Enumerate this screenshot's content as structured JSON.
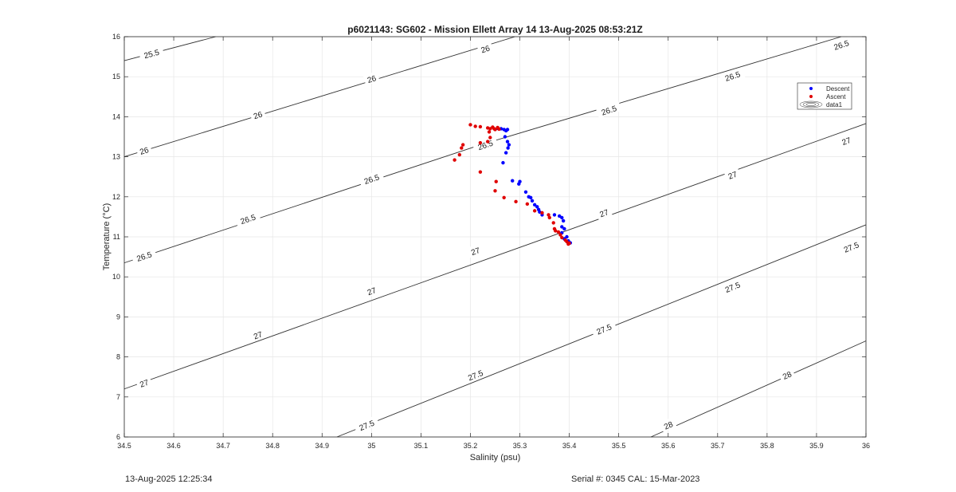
{
  "chart_data": {
    "type": "scatter",
    "title": "p6021143: SG602 - Mission Ellett Array 14 13-Aug-2025 08:53:21Z",
    "xlabel": "Salinity (psu)",
    "ylabel": "Temperature (°C)",
    "xlim": [
      34.5,
      36
    ],
    "ylim": [
      6,
      16
    ],
    "xticks": [
      "34.5",
      "34.6",
      "34.7",
      "34.8",
      "34.9",
      "35",
      "35.1",
      "35.2",
      "35.3",
      "35.4",
      "35.5",
      "35.6",
      "35.7",
      "35.8",
      "35.9",
      "36"
    ],
    "yticks": [
      "6",
      "7",
      "8",
      "9",
      "10",
      "11",
      "12",
      "13",
      "14",
      "15",
      "16"
    ],
    "grid": true,
    "legend_position": "top-right",
    "series": [
      {
        "name": "Descent",
        "color": "#0000ff",
        "points": [
          [
            35.255,
            13.71
          ],
          [
            35.262,
            13.7
          ],
          [
            35.268,
            13.68
          ],
          [
            35.272,
            13.65
          ],
          [
            35.275,
            13.68
          ],
          [
            35.27,
            13.5
          ],
          [
            35.275,
            13.38
          ],
          [
            35.278,
            13.3
          ],
          [
            35.276,
            13.22
          ],
          [
            35.272,
            13.1
          ],
          [
            35.266,
            12.85
          ],
          [
            35.285,
            12.4
          ],
          [
            35.3,
            12.38
          ],
          [
            35.298,
            12.32
          ],
          [
            35.312,
            12.12
          ],
          [
            35.318,
            12.0
          ],
          [
            35.322,
            11.98
          ],
          [
            35.325,
            11.9
          ],
          [
            35.33,
            11.8
          ],
          [
            35.335,
            11.75
          ],
          [
            35.338,
            11.68
          ],
          [
            35.34,
            11.62
          ],
          [
            35.345,
            11.55
          ],
          [
            35.37,
            11.55
          ],
          [
            35.38,
            11.52
          ],
          [
            35.385,
            11.48
          ],
          [
            35.388,
            11.4
          ],
          [
            35.385,
            11.25
          ],
          [
            35.39,
            11.2
          ],
          [
            35.385,
            11.1
          ],
          [
            35.395,
            11.0
          ],
          [
            35.39,
            10.95
          ],
          [
            35.398,
            10.9
          ],
          [
            35.402,
            10.85
          ]
        ]
      },
      {
        "name": "Ascent",
        "color": "#e00000",
        "points": [
          [
            35.2,
            13.8
          ],
          [
            35.21,
            13.76
          ],
          [
            35.22,
            13.75
          ],
          [
            35.235,
            13.72
          ],
          [
            35.24,
            13.7
          ],
          [
            35.245,
            13.74
          ],
          [
            35.25,
            13.68
          ],
          [
            35.255,
            13.73
          ],
          [
            35.258,
            13.69
          ],
          [
            35.248,
            13.7
          ],
          [
            35.238,
            13.62
          ],
          [
            35.24,
            13.48
          ],
          [
            35.235,
            13.38
          ],
          [
            35.22,
            13.35
          ],
          [
            35.185,
            13.3
          ],
          [
            35.182,
            13.22
          ],
          [
            35.178,
            13.05
          ],
          [
            35.168,
            12.92
          ],
          [
            35.22,
            12.62
          ],
          [
            35.252,
            12.38
          ],
          [
            35.25,
            12.15
          ],
          [
            35.268,
            11.98
          ],
          [
            35.292,
            11.88
          ],
          [
            35.315,
            11.82
          ],
          [
            35.33,
            11.65
          ],
          [
            35.345,
            11.6
          ],
          [
            35.358,
            11.55
          ],
          [
            35.36,
            11.48
          ],
          [
            35.368,
            11.35
          ],
          [
            35.37,
            11.2
          ],
          [
            35.372,
            11.15
          ],
          [
            35.378,
            11.12
          ],
          [
            35.382,
            11.05
          ],
          [
            35.385,
            10.98
          ],
          [
            35.392,
            10.92
          ],
          [
            35.395,
            10.88
          ],
          [
            35.4,
            10.84
          ],
          [
            35.398,
            10.82
          ]
        ]
      }
    ],
    "contour_series_name": "data1",
    "contours": [
      {
        "level": "25.5",
        "segments": [
          [
            [
              34.5,
              15.4
            ],
            [
              34.685,
              16
            ]
          ]
        ],
        "labels": [
          [
            34.555,
            15.58
          ]
        ]
      },
      {
        "level": "26",
        "segments": [
          [
            [
              34.5,
              13.0
            ],
            [
              35.29,
              16
            ]
          ]
        ],
        "labels": [
          [
            34.54,
            13.16
          ],
          [
            34.77,
            14.05
          ],
          [
            35.0,
            14.95
          ],
          [
            35.23,
            15.7
          ]
        ]
      },
      {
        "level": "26.5",
        "segments": [
          [
            [
              34.5,
              10.35
            ],
            [
              35.233,
              13.35
            ]
          ],
          [
            [
              35.24,
              13.37
            ],
            [
              35.95,
              16
            ]
          ]
        ],
        "labels": [
          [
            34.54,
            10.52
          ],
          [
            34.75,
            11.45
          ],
          [
            35.0,
            12.45
          ],
          [
            35.23,
            13.3
          ],
          [
            35.48,
            14.17
          ],
          [
            35.73,
            15.02
          ],
          [
            35.95,
            15.8
          ]
        ]
      },
      {
        "level": "27",
        "segments": [
          [
            [
              34.5,
              7.2
            ],
            [
              36,
              13.83
            ]
          ]
        ],
        "labels": [
          [
            34.54,
            7.35
          ],
          [
            34.77,
            8.55
          ],
          [
            35.0,
            9.65
          ],
          [
            35.21,
            10.65
          ],
          [
            35.47,
            11.6
          ],
          [
            35.73,
            12.55
          ],
          [
            35.96,
            13.4
          ]
        ]
      },
      {
        "level": "27.5",
        "segments": [
          [
            [
              34.93,
              6
            ],
            [
              36,
              11.3
            ]
          ]
        ],
        "labels": [
          [
            34.99,
            6.3
          ],
          [
            35.21,
            7.55
          ],
          [
            35.47,
            8.7
          ],
          [
            35.73,
            9.75
          ],
          [
            35.97,
            10.75
          ]
        ]
      },
      {
        "level": "28",
        "segments": [
          [
            [
              35.565,
              6
            ],
            [
              36,
              8.4
            ]
          ]
        ],
        "labels": [
          [
            35.6,
            6.3
          ],
          [
            35.84,
            7.55
          ]
        ]
      }
    ]
  },
  "footer": {
    "datetime": "13-Aug-2025 12:25:34",
    "serial": "Serial #: 0345  CAL: 15-Mar-2023"
  }
}
